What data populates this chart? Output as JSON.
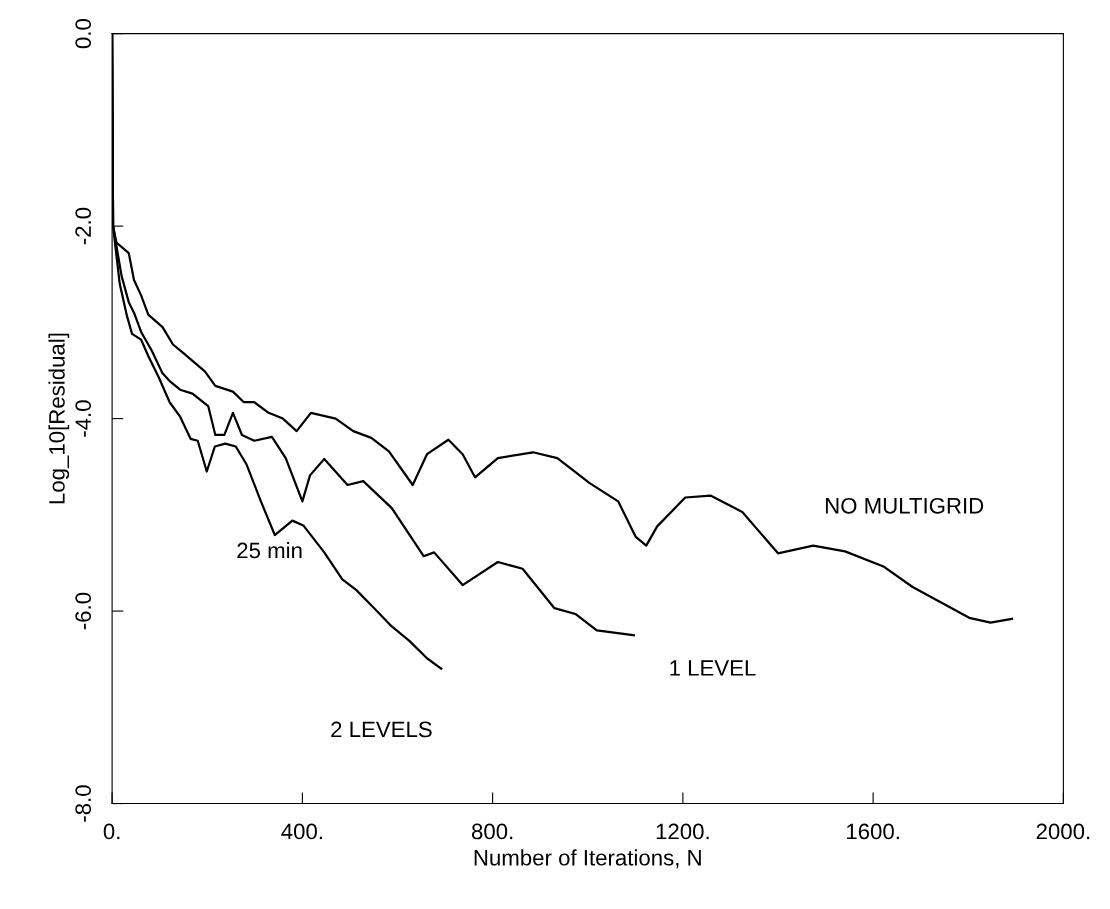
{
  "chart_data": {
    "type": "line",
    "xlabel": "Number of Iterations, N",
    "ylabel": "Log_10[Residual]",
    "xlim": [
      0,
      2000
    ],
    "ylim": [
      -8,
      0
    ],
    "xticks": [
      {
        "value": 0,
        "label": "0."
      },
      {
        "value": 400,
        "label": "400."
      },
      {
        "value": 800,
        "label": "800."
      },
      {
        "value": 1200,
        "label": "1200."
      },
      {
        "value": 1600,
        "label": "1600."
      },
      {
        "value": 2000,
        "label": "2000."
      }
    ],
    "yticks": [
      {
        "value": 0,
        "label": "0.0"
      },
      {
        "value": -2,
        "label": "-2.0"
      },
      {
        "value": -4,
        "label": "-4.0"
      },
      {
        "value": -6,
        "label": "-6.0"
      },
      {
        "value": -8,
        "label": "-8.0"
      }
    ],
    "grid": false,
    "legend": false,
    "marker": "none",
    "line_style": "solid",
    "annotations": [
      {
        "text": "25 min",
        "x": 445,
        "y": -5.39
      }
    ],
    "series": [
      {
        "name": "NO MULTIGRID",
        "color": "#000000",
        "x": [
          0,
          2,
          9,
          35,
          46,
          61,
          76,
          106,
          128,
          150,
          169,
          195,
          217,
          254,
          277,
          299,
          329,
          359,
          388,
          418,
          470,
          507,
          545,
          582,
          632,
          662,
          707,
          737,
          763,
          811,
          885,
          936,
          1004,
          1064,
          1101,
          1123,
          1146,
          1205,
          1258,
          1325,
          1400,
          1474,
          1541,
          1623,
          1683,
          1802,
          1847,
          1892
        ],
        "values": [
          0,
          -2.0,
          -2.17,
          -2.28,
          -2.56,
          -2.72,
          -2.92,
          -3.05,
          -3.23,
          -3.32,
          -3.4,
          -3.51,
          -3.66,
          -3.72,
          -3.83,
          -3.83,
          -3.94,
          -4.0,
          -4.13,
          -3.94,
          -4.0,
          -4.13,
          -4.2,
          -4.34,
          -4.69,
          -4.37,
          -4.22,
          -4.37,
          -4.61,
          -4.41,
          -4.35,
          -4.41,
          -4.67,
          -4.86,
          -5.23,
          -5.32,
          -5.12,
          -4.82,
          -4.8,
          -4.97,
          -5.4,
          -5.32,
          -5.38,
          -5.54,
          -5.75,
          -6.07,
          -6.12,
          -6.08
        ]
      },
      {
        "name": "1 LEVEL",
        "color": "#000000",
        "x": [
          0,
          2,
          20,
          35,
          46,
          61,
          83,
          106,
          121,
          143,
          169,
          202,
          217,
          236,
          254,
          273,
          299,
          336,
          365,
          400,
          416,
          446,
          495,
          528,
          588,
          655,
          677,
          737,
          811,
          863,
          930,
          974,
          1019,
          1097
        ],
        "values": [
          0,
          -2.0,
          -2.52,
          -2.79,
          -2.9,
          -3.1,
          -3.29,
          -3.53,
          -3.61,
          -3.7,
          -3.74,
          -3.87,
          -4.17,
          -4.17,
          -3.94,
          -4.17,
          -4.23,
          -4.19,
          -4.41,
          -4.86,
          -4.59,
          -4.42,
          -4.69,
          -4.65,
          -4.93,
          -5.43,
          -5.39,
          -5.73,
          -5.49,
          -5.56,
          -5.97,
          -6.03,
          -6.2,
          -6.25
        ]
      },
      {
        "name": "2 LEVELS",
        "color": "#000000",
        "x": [
          0,
          2,
          16,
          31,
          42,
          61,
          76,
          98,
          121,
          143,
          165,
          180,
          199,
          216,
          238,
          260,
          283,
          312,
          342,
          379,
          402,
          446,
          484,
          513,
          551,
          588,
          625,
          662,
          692
        ],
        "values": [
          0,
          -2.0,
          -2.6,
          -2.93,
          -3.12,
          -3.18,
          -3.35,
          -3.57,
          -3.83,
          -3.98,
          -4.21,
          -4.23,
          -4.55,
          -4.29,
          -4.26,
          -4.29,
          -4.48,
          -4.85,
          -5.21,
          -5.06,
          -5.11,
          -5.39,
          -5.67,
          -5.78,
          -5.97,
          -6.16,
          -6.31,
          -6.49,
          -6.6
        ]
      }
    ]
  }
}
